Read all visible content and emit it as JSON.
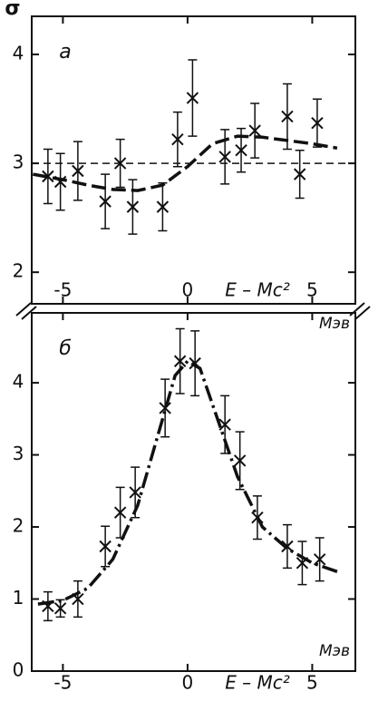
{
  "chart_data": [
    {
      "type": "errorbar",
      "ylabel": "σ",
      "panel_label": "а",
      "xlabel": "E – Mc²",
      "x_unit": "Мэв",
      "x": [
        -5.6,
        -5.1,
        -4.4,
        -3.3,
        -2.7,
        -2.2,
        -1.0,
        -0.4,
        0.2,
        1.5,
        2.15,
        2.7,
        4.0,
        4.5,
        5.2
      ],
      "values": [
        2.88,
        2.83,
        2.93,
        2.65,
        3.0,
        2.6,
        2.6,
        3.22,
        3.6,
        3.06,
        3.12,
        3.3,
        3.43,
        2.9,
        3.37
      ],
      "errors": [
        0.25,
        0.26,
        0.27,
        0.25,
        0.22,
        0.25,
        0.22,
        0.25,
        0.35,
        0.25,
        0.2,
        0.25,
        0.3,
        0.22,
        0.22
      ],
      "curve": {
        "x": [
          -6.2,
          -5,
          -4,
          -3,
          -2,
          -1,
          0,
          1,
          2,
          3,
          4,
          5,
          6
        ],
        "values": [
          2.9,
          2.85,
          2.8,
          2.76,
          2.75,
          2.8,
          2.97,
          3.18,
          3.25,
          3.24,
          3.21,
          3.18,
          3.14
        ]
      },
      "reference_line": 3,
      "xlim": [
        -6.25,
        6.73
      ],
      "ylim": [
        1.71,
        4.35
      ],
      "xticks": [
        -5,
        0,
        5
      ],
      "yticks": [
        2,
        3,
        4
      ]
    },
    {
      "type": "errorbar",
      "panel_label": "б",
      "xlabel": "E – Mc²",
      "x_unit": "Мэв",
      "x": [
        -5.6,
        -5.1,
        -4.4,
        -3.3,
        -2.7,
        -2.1,
        -0.9,
        -0.3,
        0.3,
        1.5,
        2.1,
        2.8,
        4.0,
        4.6,
        5.3
      ],
      "values": [
        0.9,
        0.87,
        1.0,
        1.73,
        2.2,
        2.48,
        3.65,
        4.3,
        4.27,
        3.42,
        2.92,
        2.13,
        1.73,
        1.5,
        1.55
      ],
      "errors": [
        0.2,
        0.12,
        0.25,
        0.28,
        0.35,
        0.35,
        0.4,
        0.45,
        0.45,
        0.4,
        0.4,
        0.3,
        0.3,
        0.3,
        0.3
      ],
      "curve": {
        "x": [
          -6,
          -5,
          -4,
          -3,
          -2,
          -1,
          -0.5,
          0,
          0.5,
          1,
          2,
          3,
          4,
          5,
          6
        ],
        "values": [
          0.93,
          0.98,
          1.15,
          1.55,
          2.3,
          3.5,
          4.1,
          4.3,
          4.2,
          3.7,
          2.7,
          2.0,
          1.7,
          1.5,
          1.38
        ]
      },
      "xlim": [
        -6.25,
        6.73
      ],
      "ylim": [
        0,
        4.97
      ],
      "xticks": [
        -5,
        0,
        5
      ],
      "yticks": [
        0,
        1,
        2,
        3,
        4
      ]
    }
  ]
}
